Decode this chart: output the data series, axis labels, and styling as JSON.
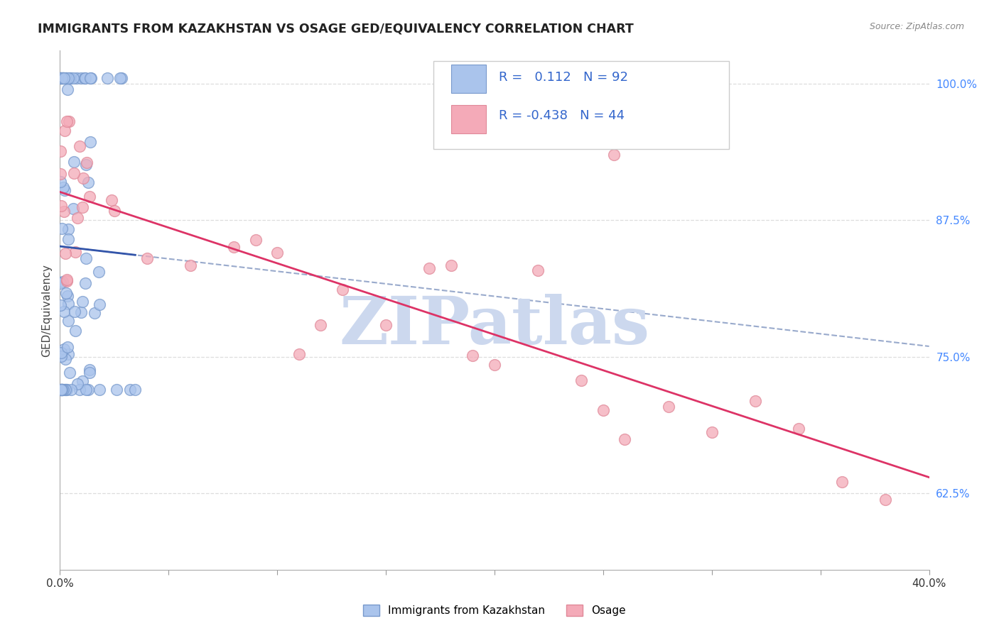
{
  "title": "IMMIGRANTS FROM KAZAKHSTAN VS OSAGE GED/EQUIVALENCY CORRELATION CHART",
  "source": "Source: ZipAtlas.com",
  "ylabel": "GED/Equivalency",
  "xmin": 0.0,
  "xmax": 0.4,
  "ymin": 0.555,
  "ymax": 1.03,
  "blue_color": "#aac4ec",
  "pink_color": "#f4aab8",
  "blue_edge_color": "#7799cc",
  "pink_edge_color": "#e08898",
  "blue_line_color": "#3355aa",
  "pink_line_color": "#dd3366",
  "dashed_line_color": "#99aacc",
  "watermark": "ZIPatlas",
  "watermark_color": "#ccd8ee",
  "legend_text_color": "#3366cc",
  "legend_border_color": "#cccccc",
  "ytick_color": "#4488ff",
  "grid_color": "#dddddd",
  "axis_color": "#aaaaaa"
}
